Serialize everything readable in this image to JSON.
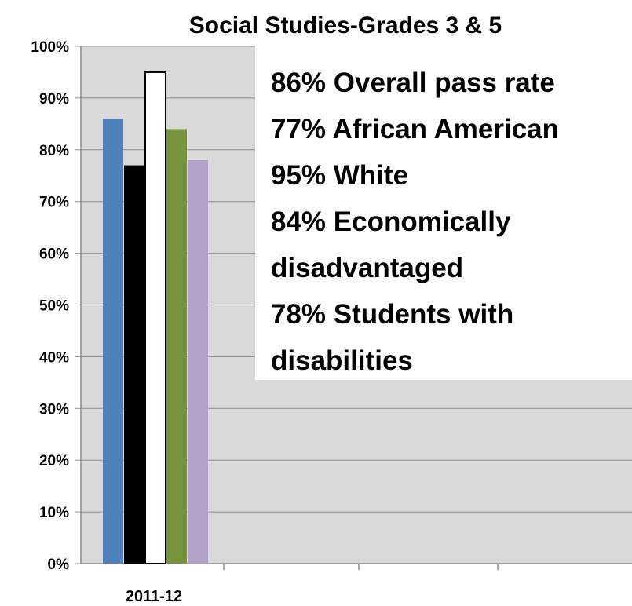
{
  "chart_data": {
    "type": "bar",
    "title": "Social Studies-Grades 3 & 5",
    "categories": [
      "2011-12"
    ],
    "series": [
      {
        "color": "#4f81bd",
        "values": [
          86
        ]
      },
      {
        "color": "#000000",
        "values": [
          77
        ]
      },
      {
        "color": "#ffffff",
        "values": [
          95
        ]
      },
      {
        "color": "#77933c",
        "values": [
          84
        ]
      },
      {
        "color": "#b3a2c7",
        "values": [
          78
        ]
      }
    ],
    "ylim": [
      0,
      100
    ],
    "yticks": [
      "0%",
      "10%",
      "20%",
      "30%",
      "40%",
      "50%",
      "60%",
      "70%",
      "80%",
      "90%",
      "100%"
    ],
    "grid": true,
    "plot_background": "#d9d9d9",
    "annotations": [
      "86% Overall pass rate",
      "77% African American",
      "95% White",
      "84% Economically",
      "disadvantaged",
      "78% Students with",
      "disabilities"
    ]
  }
}
